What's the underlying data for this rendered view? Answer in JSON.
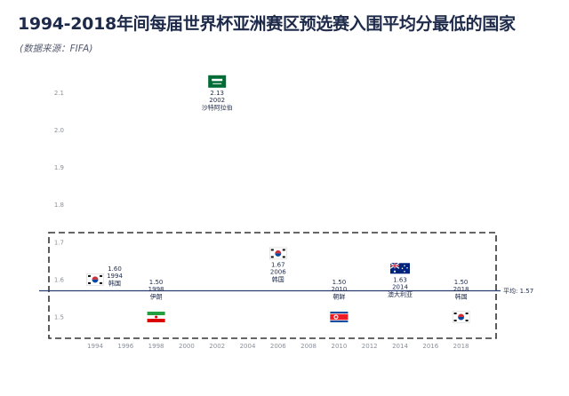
{
  "header": {
    "title": "1994-2018年间每届世界杯亚洲赛区预选赛入围平均分最低的国家",
    "subtitle": "(数据来源：FIFA)"
  },
  "chart_data": {
    "type": "scatter",
    "title": "1994-2018年间每届世界杯亚洲赛区预选赛入围平均分最低的国家",
    "subtitle": "(数据来源：FIFA)",
    "x_ticks": [
      "1994",
      "1996",
      "1998",
      "2000",
      "2002",
      "2004",
      "2006",
      "2008",
      "2010",
      "2012",
      "2014",
      "2016",
      "2018"
    ],
    "y_ticks": [
      "1.5",
      "1.6",
      "1.7",
      "1.8",
      "1.9",
      "2.0",
      "2.1"
    ],
    "ylim": [
      1.45,
      2.15
    ],
    "xlim": [
      1993,
      2019
    ],
    "average": {
      "value": 1.57,
      "label": "平均: 1.57"
    },
    "grid": false,
    "points": [
      {
        "year": 1994,
        "value": 1.6,
        "value_label": "1.60",
        "year_label": "1994",
        "country": "韩国",
        "flag": "korea-flag",
        "label_side": "right"
      },
      {
        "year": 1998,
        "value": 1.5,
        "value_label": "1.50",
        "year_label": "1998",
        "country": "伊朗",
        "flag": "iran-flag",
        "label_side": "above"
      },
      {
        "year": 2002,
        "value": 2.13,
        "value_label": "2.13",
        "year_label": "2002",
        "country": "沙特阿拉伯",
        "flag": "saudi-arabia-flag",
        "label_side": "below"
      },
      {
        "year": 2006,
        "value": 1.67,
        "value_label": "1.67",
        "year_label": "2006",
        "country": "韩国",
        "flag": "korea-flag",
        "label_side": "below"
      },
      {
        "year": 2010,
        "value": 1.5,
        "value_label": "1.50",
        "year_label": "2010",
        "country": "朝鲜",
        "flag": "north-korea-flag",
        "label_side": "above"
      },
      {
        "year": 2014,
        "value": 1.63,
        "value_label": "1.63",
        "year_label": "2014",
        "country": "澳大利亚",
        "flag": "australia-flag",
        "label_side": "below"
      },
      {
        "year": 2018,
        "value": 1.5,
        "value_label": "1.50",
        "year_label": "2018",
        "country": "韩国",
        "flag": "korea-flag",
        "label_side": "above"
      }
    ],
    "colors": {
      "text": "#1e2a4a",
      "average_line": "#2d3e73",
      "dashed_box": "#333333",
      "tick": "#8a8f99"
    }
  }
}
